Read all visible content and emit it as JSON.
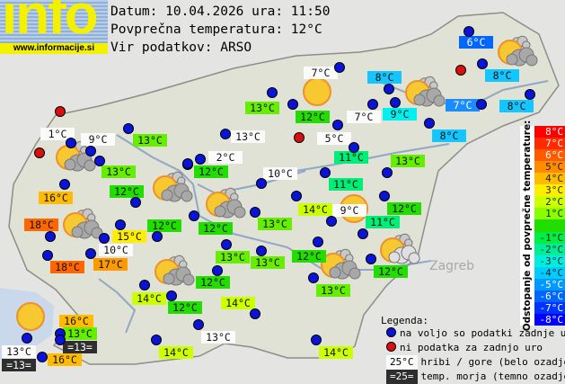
{
  "logo": {
    "word": "info",
    "url": "www.informacije.si"
  },
  "header": {
    "date_line": "Datum: 10.04.2026 ura: 11:50",
    "avg_line": "Povprečna temperatura: 12°C",
    "source_line": "Vir podatkov: ARSO"
  },
  "temp_colors": {
    "6": "#0066ff",
    "7": "#1a8cff",
    "8": "#14c6ff",
    "9": "#00f0f0",
    "10": "#00ee99",
    "11": "#00ee77",
    "12": "#22dd00",
    "13": "#66ee00",
    "14": "#ccff00",
    "15": "#ffee00",
    "16": "#ffbb00",
    "17": "#ff9900",
    "18": "#ff6600"
  },
  "stations": [
    {
      "t": "1°C",
      "k": "mountain"
    },
    {
      "t": "9°C",
      "k": "mountain"
    },
    {
      "t": "13°C",
      "k": "land"
    },
    {
      "t": "13°C",
      "k": "land"
    },
    {
      "t": "12°C",
      "k": "land"
    },
    {
      "t": "16°C",
      "k": "land"
    },
    {
      "t": "18°C",
      "k": "land"
    },
    {
      "t": "12°C",
      "k": "land"
    },
    {
      "t": "15°C",
      "k": "land"
    },
    {
      "t": "10°C",
      "k": "mountain"
    },
    {
      "t": "18°C",
      "k": "land"
    },
    {
      "t": "17°C",
      "k": "land"
    },
    {
      "t": "7°C",
      "k": "mountain"
    },
    {
      "t": "8°C",
      "k": "land"
    },
    {
      "t": "13°C",
      "k": "land"
    },
    {
      "t": "12°C",
      "k": "land"
    },
    {
      "t": "7°C",
      "k": "mountain"
    },
    {
      "t": "9°C",
      "k": "land"
    },
    {
      "t": "13°C",
      "k": "mountain"
    },
    {
      "t": "5°C",
      "k": "mountain"
    },
    {
      "t": "11°C",
      "k": "land"
    },
    {
      "t": "13°C",
      "k": "land"
    },
    {
      "t": "2°C",
      "k": "mountain"
    },
    {
      "t": "12°C",
      "k": "land"
    },
    {
      "t": "10°C",
      "k": "mountain"
    },
    {
      "t": "11°C",
      "k": "land"
    },
    {
      "t": "6°C",
      "k": "land"
    },
    {
      "t": "8°C",
      "k": "land"
    },
    {
      "t": "7°C",
      "k": "land"
    },
    {
      "t": "8°C",
      "k": "land"
    },
    {
      "t": "8°C",
      "k": "land"
    },
    {
      "t": "14°C",
      "k": "land"
    },
    {
      "t": "9°C",
      "k": "mountain"
    },
    {
      "t": "12°C",
      "k": "land"
    },
    {
      "t": "13°C",
      "k": "land"
    },
    {
      "t": "12°C",
      "k": "land"
    },
    {
      "t": "11°C",
      "k": "land"
    },
    {
      "t": "13°C",
      "k": "land"
    },
    {
      "t": "13°C",
      "k": "land"
    },
    {
      "t": "12°C",
      "k": "land"
    },
    {
      "t": "12°C",
      "k": "land"
    },
    {
      "t": "12°C",
      "k": "land"
    },
    {
      "t": "13°C",
      "k": "land"
    },
    {
      "t": "14°C",
      "k": "land"
    },
    {
      "t": "12°C",
      "k": "land"
    },
    {
      "t": "14°C",
      "k": "land"
    },
    {
      "t": "16°C",
      "k": "land"
    },
    {
      "t": "13°C",
      "k": "land"
    },
    {
      "t": "=13=",
      "k": "sea"
    },
    {
      "t": "13°C",
      "k": "mountain"
    },
    {
      "t": "=13=",
      "k": "sea"
    },
    {
      "t": "16°C",
      "k": "land"
    },
    {
      "t": "13°C",
      "k": "mountain"
    },
    {
      "t": "14°C",
      "k": "land"
    },
    {
      "t": "14°C",
      "k": "land"
    }
  ],
  "marker_status_missing": [
    0,
    1,
    2,
    3
  ],
  "weather_icons": [
    "partly-cloudy",
    "partly-cloudy",
    "partly-cloudy",
    "partly-cloudy",
    "sunny",
    "sunny",
    "partly-cloudy-light",
    "partly-cloudy",
    "partly-cloudy",
    "partly-cloudy",
    "partly-cloudy",
    "sunny"
  ],
  "colorbar": {
    "title": "Odstopanje od povprečne temperature:",
    "cells": [
      {
        "l": "8°C",
        "c": "#ff0000",
        "f": "#fff"
      },
      {
        "l": "7°C",
        "c": "#ff2a00",
        "f": "#fff"
      },
      {
        "l": "6°C",
        "c": "#ff5a00",
        "f": "#fff"
      },
      {
        "l": "5°C",
        "c": "#ff8c00",
        "f": "#222"
      },
      {
        "l": "4°C",
        "c": "#ffbb00",
        "f": "#222"
      },
      {
        "l": "3°C",
        "c": "#ffee00",
        "f": "#222"
      },
      {
        "l": "2°C",
        "c": "#ccff00",
        "f": "#222"
      },
      {
        "l": "1°C",
        "c": "#88ff00",
        "f": "#222"
      },
      {
        "l": "",
        "c": "#22dd00",
        "f": "#222"
      },
      {
        "l": "-1°C",
        "c": "#00ee44",
        "f": "#222"
      },
      {
        "l": "-2°C",
        "c": "#00ee99",
        "f": "#222"
      },
      {
        "l": "-3°C",
        "c": "#00eedd",
        "f": "#222"
      },
      {
        "l": "-4°C",
        "c": "#00ccff",
        "f": "#222"
      },
      {
        "l": "-5°C",
        "c": "#0099ff",
        "f": "#fff"
      },
      {
        "l": "-6°C",
        "c": "#0066ff",
        "f": "#fff"
      },
      {
        "l": "-7°C",
        "c": "#0033ff",
        "f": "#fff"
      },
      {
        "l": "-8°C",
        "c": "#0000ff",
        "f": "#fff"
      }
    ]
  },
  "legend": {
    "title": "Legenda:",
    "available": "na voljo so podatki zadnje ure",
    "missing": "ni podatka za zadnjo uro",
    "mountain_sample": "25°C",
    "mountain_desc": "hribi / gore (belo ozadje)",
    "sea_sample": "=25=",
    "sea_desc": "temp. morja (temno ozadje)",
    "available_color": "#0a14d8",
    "missing_color": "#d81010"
  },
  "map_labels": {
    "city": "Zagreb"
  }
}
